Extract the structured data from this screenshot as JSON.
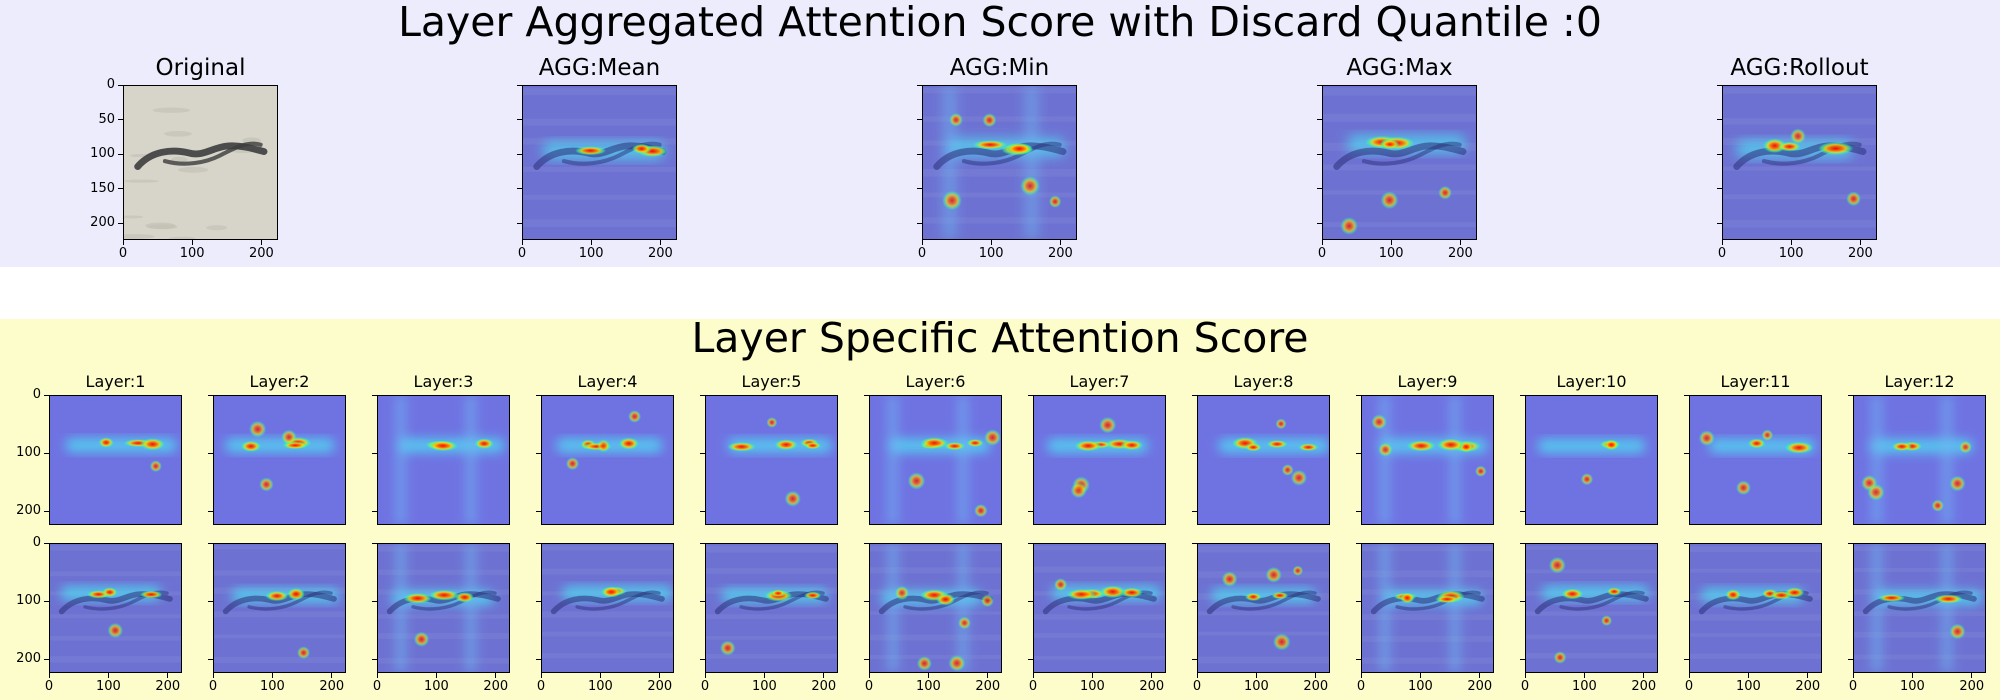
{
  "figure": {
    "suptitle_top": "Layer Aggregated Attention Score with Discard Quantile :0",
    "suptitle_bottom": "Layer Specific Attention Score",
    "colors": {
      "top_band": "#ececfc",
      "bottom_band": "#fdfdcb",
      "colormap": "jet"
    }
  },
  "chart_data": [
    {
      "type": "heatmap",
      "group": "aggregated",
      "panels": [
        {
          "title": "Original",
          "kind": "image"
        },
        {
          "title": "AGG:Mean",
          "kind": "overlay"
        },
        {
          "title": "AGG:Min",
          "kind": "overlay"
        },
        {
          "title": "AGG:Max",
          "kind": "overlay"
        },
        {
          "title": "AGG:Rollout",
          "kind": "overlay"
        }
      ],
      "x_ticks": [
        0,
        100,
        200
      ],
      "y_ticks": [
        0,
        50,
        100,
        150,
        200
      ],
      "xlim": [
        0,
        224
      ],
      "ylim": [
        224,
        0
      ]
    },
    {
      "type": "heatmap",
      "group": "layer_specific",
      "rows": [
        "heatmap",
        "overlay"
      ],
      "layers": [
        "Layer:1",
        "Layer:2",
        "Layer:3",
        "Layer:4",
        "Layer:5",
        "Layer:6",
        "Layer:7",
        "Layer:8",
        "Layer:9",
        "Layer:10",
        "Layer:11",
        "Layer:12"
      ],
      "x_ticks": [
        0,
        100,
        200
      ],
      "y_ticks": [
        0,
        100,
        200
      ],
      "xlim": [
        0,
        224
      ],
      "ylim": [
        224,
        0
      ]
    }
  ]
}
